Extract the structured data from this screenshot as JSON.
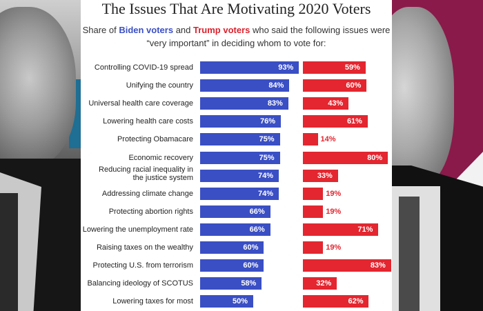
{
  "header": {
    "title": "The Issues That Are Motivating 2020 Voters",
    "subtitle_prefix": "Share of ",
    "subtitle_biden": "Biden voters",
    "subtitle_and": " and ",
    "subtitle_trump": "Trump voters",
    "subtitle_suffix": " who said the following issues were “very important” in deciding whom to vote for:"
  },
  "colors": {
    "biden": "#3a4fc4",
    "trump": "#e3262f",
    "right_background": "#8a1a4a"
  },
  "images": {
    "left": "biden-portrait",
    "right": "trump-portrait"
  },
  "chart_data": {
    "type": "bar",
    "title": "The Issues That Are Motivating 2020 Voters",
    "xlabel": "",
    "ylabel": "",
    "unit": "%",
    "legend": [
      "Biden voters",
      "Trump voters"
    ],
    "categories": [
      "Controlling COVID-19 spread",
      "Unifying the country",
      "Universal health care coverage",
      "Lowering health care costs",
      "Protecting Obamacare",
      "Economic recovery",
      "Reducing racial inequality in the justice system",
      "Addressing climate change",
      "Protecting abortion rights",
      "Lowering the unemployment rate",
      "Raising taxes on the wealthy",
      "Protecting U.S. from terrorism",
      "Balancing ideology of SCOTUS",
      "Lowering taxes for most"
    ],
    "label_lines": [
      [
        "Controlling COVID-19 spread"
      ],
      [
        "Unifying the country"
      ],
      [
        "Universal health care coverage"
      ],
      [
        "Lowering health care costs"
      ],
      [
        "Protecting Obamacare"
      ],
      [
        "Economic recovery"
      ],
      [
        "Reducing racial inequality in",
        "the justice system"
      ],
      [
        "Addressing climate change"
      ],
      [
        "Protecting abortion rights"
      ],
      [
        "Lowering the unemployment rate"
      ],
      [
        "Raising taxes on the wealthy"
      ],
      [
        "Protecting U.S. from terrorism"
      ],
      [
        "Balancing ideology of SCOTUS"
      ],
      [
        "Lowering taxes for most"
      ]
    ],
    "series": [
      {
        "name": "Biden voters",
        "values": [
          93,
          84,
          83,
          76,
          75,
          75,
          74,
          74,
          66,
          66,
          60,
          60,
          58,
          50
        ]
      },
      {
        "name": "Trump voters",
        "values": [
          59,
          60,
          43,
          61,
          14,
          80,
          33,
          19,
          19,
          71,
          19,
          83,
          32,
          62
        ]
      }
    ],
    "xlim": [
      0,
      100
    ]
  }
}
